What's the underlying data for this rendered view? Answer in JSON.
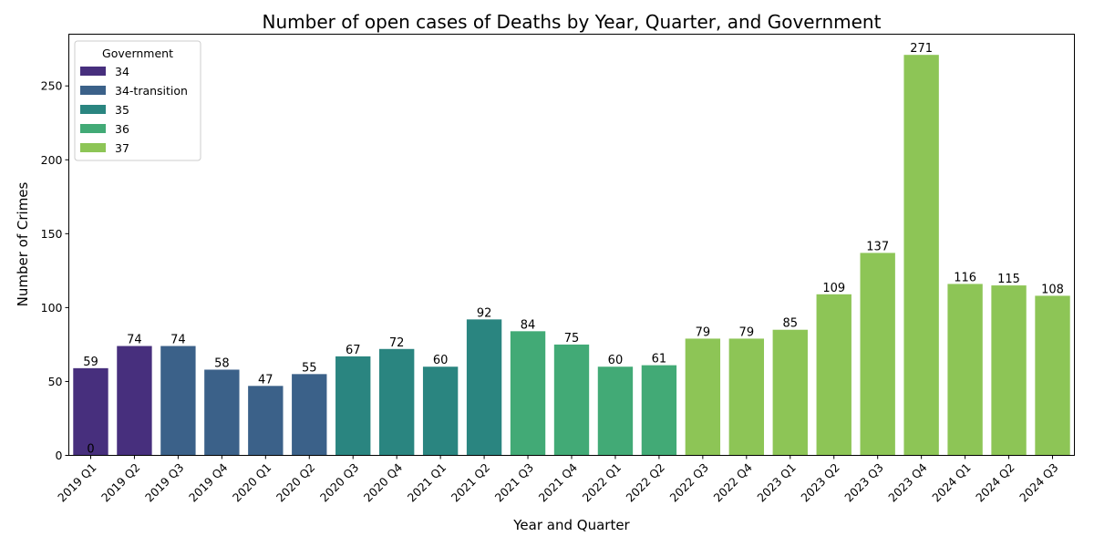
{
  "chart_data": {
    "type": "bar",
    "title": "Number of open cases of Deaths by Year, Quarter, and Government",
    "xlabel": "Year and Quarter",
    "ylabel": "Number of Crimes",
    "ylim": [
      0,
      285
    ],
    "yticks": [
      0,
      50,
      100,
      150,
      200,
      250
    ],
    "grid": false,
    "legend": {
      "title": "Government",
      "placement": "top-left",
      "entries": [
        {
          "name": "34",
          "color": "#472f7d"
        },
        {
          "name": "34-transition",
          "color": "#3b6189"
        },
        {
          "name": "35",
          "color": "#2a8580"
        },
        {
          "name": "36",
          "color": "#42aa76"
        },
        {
          "name": "37",
          "color": "#8dc556"
        }
      ]
    },
    "categories": [
      "2019 Q1",
      "2019 Q2",
      "2019 Q3",
      "2019 Q4",
      "2020 Q1",
      "2020 Q2",
      "2020 Q3",
      "2020 Q4",
      "2021 Q1",
      "2021 Q2",
      "2021 Q3",
      "2021 Q4",
      "2022 Q1",
      "2022 Q2",
      "2022 Q3",
      "2022 Q4",
      "2023 Q1",
      "2023 Q2",
      "2023 Q3",
      "2023 Q4",
      "2024 Q1",
      "2024 Q2",
      "2024 Q3"
    ],
    "values": [
      59,
      74,
      74,
      58,
      47,
      55,
      67,
      72,
      60,
      92,
      84,
      75,
      60,
      61,
      79,
      79,
      85,
      109,
      137,
      271,
      116,
      115,
      108
    ],
    "government": [
      "34",
      "34",
      "34-transition",
      "34-transition",
      "34-transition",
      "34-transition",
      "35",
      "35",
      "35",
      "35",
      "36",
      "36",
      "36",
      "36",
      "37",
      "37",
      "37",
      "37",
      "37",
      "37",
      "37",
      "37",
      "37"
    ],
    "extra_labels": [
      {
        "category": "2019 Q1",
        "value": 0,
        "label": "0"
      }
    ]
  }
}
